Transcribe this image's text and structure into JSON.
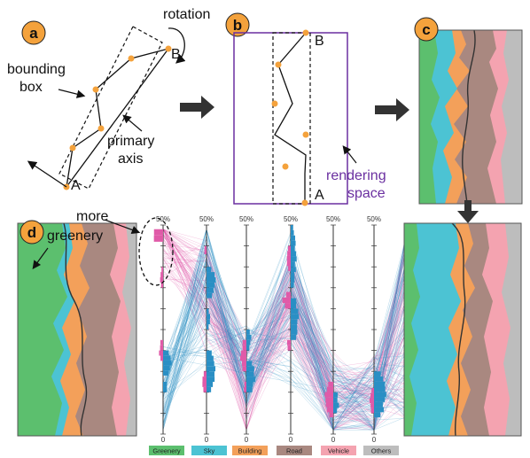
{
  "panels": {
    "a": {
      "badge": "a",
      "rotation_label": "rotation",
      "bounding_box_label_1": "bounding",
      "bounding_box_label_2": "box",
      "primary_axis_label_1": "primary",
      "primary_axis_label_2": "axis",
      "point_a": "A",
      "point_b": "B"
    },
    "b": {
      "badge": "b",
      "point_a": "A",
      "point_b": "B",
      "rendering_label_1": "rendering",
      "rendering_label_2": "space"
    },
    "c": {
      "badge": "c"
    },
    "d": {
      "badge": "d",
      "annotation_1": "more",
      "annotation_2": "greenery",
      "axis_top": "50%",
      "axis_bottom": "0"
    }
  },
  "legend": [
    {
      "label": "Greenery",
      "color": "#5cbf6e"
    },
    {
      "label": "Sky",
      "color": "#4cc3d3"
    },
    {
      "label": "Building",
      "color": "#f3a05a"
    },
    {
      "label": "Road",
      "color": "#a98880"
    },
    {
      "label": "Vehicle",
      "color": "#f4a3b0"
    },
    {
      "label": "Others",
      "color": "#bdbdbd"
    }
  ],
  "colors": {
    "greenery": "#5cbf6e",
    "sky": "#4cc3d3",
    "building": "#f3a05a",
    "road": "#a98880",
    "vehicle": "#f4a3b0",
    "others": "#bdbdbd",
    "badge": "#f4a23c",
    "point": "#f4a23c",
    "rendering_frame": "#6a2fa0",
    "pink_path": "#e05aa8",
    "blue_path": "#2a8fc4"
  }
}
